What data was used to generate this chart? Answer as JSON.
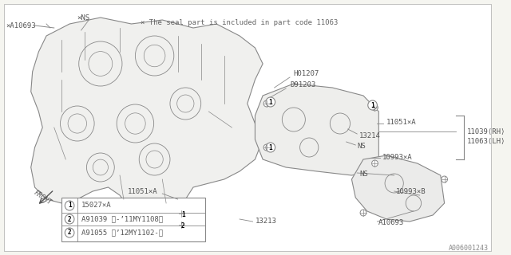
{
  "bg_color": "#f5f5f0",
  "line_color": "#888888",
  "text_color": "#555555",
  "title_note": "× The seal part is included in part code 11063",
  "doc_number": "A006001243",
  "labels": {
    "A10693_top": "×A10693",
    "NS_top": "×NS",
    "H01207": "H01207",
    "D91203": "D91203",
    "11051A_right": "11051×A",
    "13214": "13214",
    "NS_mid": "NS",
    "10993A": "10993×A",
    "NS_low": "NS",
    "10993B": "10993×B",
    "11039_11063": "11039＜RH＞\n11063＜LH＞",
    "11051A_left": "11051×A",
    "13213": "13213",
    "A10693_bot": "A10693",
    "FRONT": "FRONT"
  },
  "legend": [
    {
      "symbol": "1",
      "text": "15027×A"
    },
    {
      "symbol": "2",
      "text": "A91039 ＜-’11MY1108＞"
    },
    {
      "symbol": "2",
      "text": "A91055 ＜’12MY1102-＞"
    }
  ]
}
